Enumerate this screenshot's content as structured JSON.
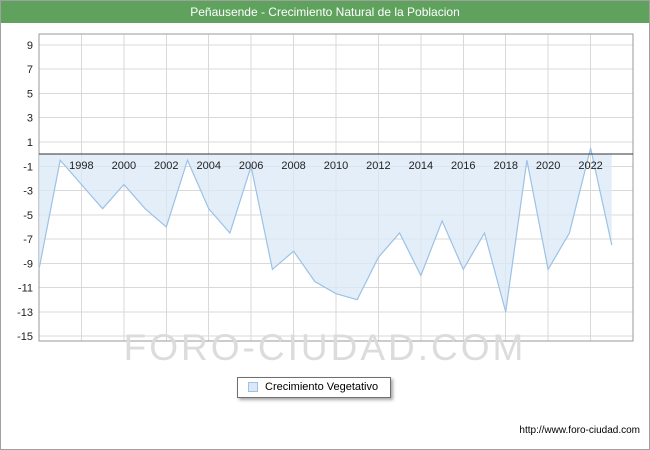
{
  "header": {
    "title": "Peñausende - Crecimiento Natural de la Poblacion",
    "bg_color": "#5ea25e"
  },
  "legend": {
    "label": "Crecimiento Vegetativo"
  },
  "watermark": "FORO-CIUDAD.COM",
  "footer": {
    "url": "http://www.foro-ciudad.com"
  },
  "chart_data": {
    "type": "area",
    "title": "Peñausende - Crecimiento Natural de la Poblacion",
    "xlabel": "",
    "ylabel": "",
    "x": [
      1996,
      1997,
      1998,
      1999,
      2000,
      2001,
      2002,
      2003,
      2004,
      2005,
      2006,
      2007,
      2008,
      2009,
      2010,
      2011,
      2012,
      2013,
      2014,
      2015,
      2016,
      2017,
      2018,
      2019,
      2020,
      2021,
      2022,
      2023
    ],
    "series": [
      {
        "name": "Crecimiento Vegetativo",
        "values": [
          -9.5,
          -0.5,
          -2.5,
          -4.5,
          -2.5,
          -4.5,
          -6,
          -0.5,
          -4.5,
          -6.5,
          -1,
          -9.5,
          -8,
          -10.5,
          -11.5,
          -12,
          -8.5,
          -6.5,
          -10,
          -5.5,
          -9.5,
          -6.5,
          -13,
          -0.5,
          -9.5,
          -6.5,
          0.5,
          -7.5
        ]
      }
    ],
    "baseline": 0,
    "xlim": [
      1996,
      2024
    ],
    "ylim": [
      -15.4,
      9.9
    ],
    "yticks": [
      9,
      7,
      5,
      3,
      1,
      -1,
      -3,
      -5,
      -7,
      -9,
      -11,
      -13,
      -15
    ],
    "xticks": [
      1998,
      2000,
      2002,
      2004,
      2006,
      2008,
      2010,
      2012,
      2014,
      2016,
      2018,
      2020,
      2022
    ],
    "grid": true,
    "legend_position": "bottom",
    "colors": {
      "fill": "#dbe8f7",
      "stroke": "#9cc2e5",
      "grid": "#d9d9d9",
      "axis": "#333333",
      "border": "#9a9a9a",
      "tick_text": "#222222"
    }
  }
}
